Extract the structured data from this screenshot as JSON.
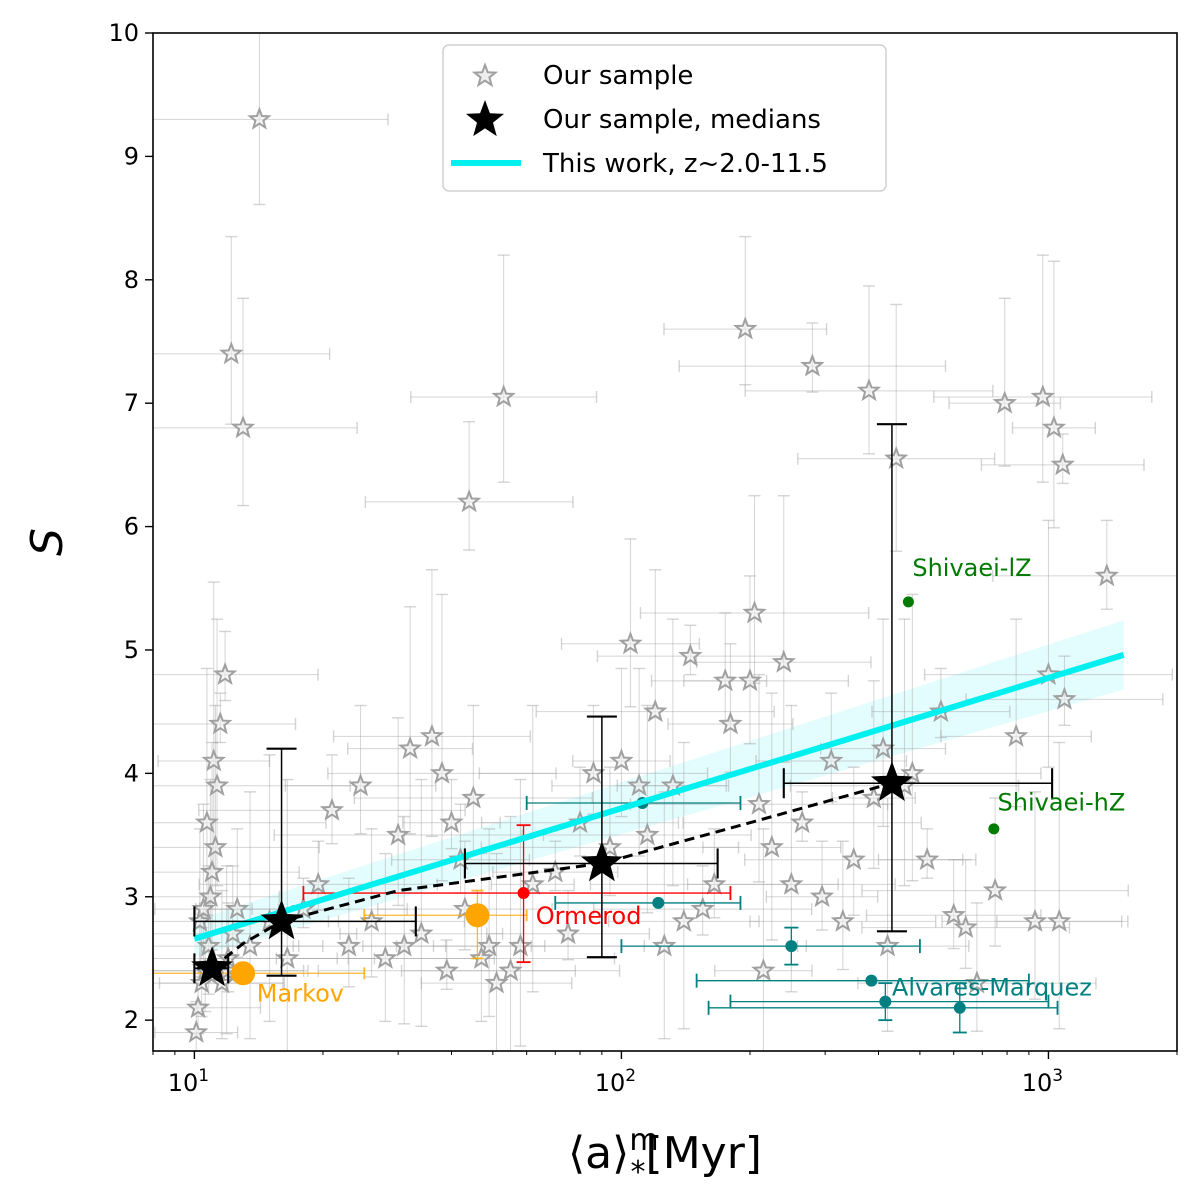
{
  "chart_data": {
    "type": "scatter",
    "xscale": "log",
    "xlim": [
      8,
      2000
    ],
    "ylim": [
      1.75,
      10
    ],
    "xlabel_main": "⟨a⟩",
    "xlabel_sup": "m",
    "xlabel_sub": "*",
    "xlabel_unit": "[Myr]",
    "ylabel": "S",
    "x_tick_labels": [
      "10",
      "10",
      "10"
    ],
    "x_tick_exponents": [
      "1",
      "2",
      "3"
    ],
    "x_tick_values": [
      10,
      100,
      1000
    ],
    "y_ticks": [
      2,
      3,
      4,
      5,
      6,
      7,
      8,
      9,
      10
    ],
    "y_tick_labels": [
      "2",
      "3",
      "4",
      "5",
      "6",
      "7",
      "8",
      "9",
      "10"
    ],
    "legend": [
      {
        "label": "Our sample",
        "marker": "open-star",
        "color": "#a0a0a0"
      },
      {
        "label": "Our sample, medians",
        "marker": "filled-star",
        "color": "#000000"
      },
      {
        "label": "This work, z~2.0-11.5",
        "marker": "line",
        "color": "#00f0f0"
      }
    ],
    "colors": {
      "sample": "#a0a0a0",
      "median": "#000000",
      "fit": "#00f0f0",
      "band": "#d9fbfc",
      "markov": "#ffa500",
      "ormerod": "#ff0000",
      "alvares": "#008080",
      "shivaei": "#007a00"
    },
    "sample_points": [
      [
        10.1,
        1.9
      ],
      [
        10.2,
        2.1
      ],
      [
        10.4,
        2.3
      ],
      [
        10.6,
        2.4
      ],
      [
        10.8,
        2.6
      ],
      [
        10.3,
        2.8
      ],
      [
        10.5,
        2.9
      ],
      [
        10.9,
        3.0
      ],
      [
        11.0,
        3.2
      ],
      [
        11.2,
        3.4
      ],
      [
        10.7,
        3.6
      ],
      [
        11.3,
        3.9
      ],
      [
        11.1,
        4.1
      ],
      [
        11.5,
        4.4
      ],
      [
        11.8,
        4.8
      ],
      [
        12.0,
        2.5
      ],
      [
        12.3,
        2.7
      ],
      [
        12.6,
        2.9
      ],
      [
        11.6,
        2.3
      ],
      [
        11.9,
        2.4
      ],
      [
        12.2,
        7.4
      ],
      [
        13.0,
        6.8
      ],
      [
        14.2,
        9.3
      ],
      [
        13.5,
        2.6
      ],
      [
        15.0,
        2.8
      ],
      [
        16.5,
        2.5
      ],
      [
        18.0,
        2.9
      ],
      [
        19.5,
        3.1
      ],
      [
        21.0,
        3.7
      ],
      [
        23.0,
        2.6
      ],
      [
        24.5,
        3.9
      ],
      [
        26.0,
        2.8
      ],
      [
        28.0,
        2.5
      ],
      [
        30.0,
        3.5
      ],
      [
        31.0,
        2.6
      ],
      [
        32.0,
        4.2
      ],
      [
        34.0,
        2.7
      ],
      [
        36.0,
        4.3
      ],
      [
        38.0,
        4.0
      ],
      [
        39.0,
        2.4
      ],
      [
        40.0,
        3.6
      ],
      [
        42.0,
        3.3
      ],
      [
        43.0,
        2.9
      ],
      [
        44.0,
        6.2
      ],
      [
        45.0,
        3.8
      ],
      [
        47.0,
        2.5
      ],
      [
        49.0,
        2.6
      ],
      [
        51.0,
        2.3
      ],
      [
        53.0,
        7.05
      ],
      [
        55.0,
        2.4
      ],
      [
        58.0,
        2.6
      ],
      [
        62.0,
        3.1
      ],
      [
        70.0,
        3.2
      ],
      [
        75.0,
        2.7
      ],
      [
        80.0,
        3.6
      ],
      [
        86.0,
        4.0
      ],
      [
        94.0,
        3.4
      ],
      [
        100.0,
        4.1
      ],
      [
        105.0,
        5.05
      ],
      [
        110.0,
        3.9
      ],
      [
        115.0,
        3.5
      ],
      [
        120.0,
        4.5
      ],
      [
        126.0,
        2.6
      ],
      [
        132.0,
        3.9
      ],
      [
        140.0,
        2.8
      ],
      [
        145.0,
        4.95
      ],
      [
        155.0,
        2.9
      ],
      [
        165.0,
        3.1
      ],
      [
        175.0,
        4.75
      ],
      [
        180.0,
        4.4
      ],
      [
        195.0,
        7.6
      ],
      [
        200.0,
        4.75
      ],
      [
        205.0,
        5.3
      ],
      [
        210.0,
        3.75
      ],
      [
        215.0,
        2.4
      ],
      [
        225.0,
        3.4
      ],
      [
        240.0,
        4.9
      ],
      [
        250.0,
        3.1
      ],
      [
        265.0,
        3.6
      ],
      [
        280.0,
        7.3
      ],
      [
        295.0,
        3.0
      ],
      [
        310.0,
        4.1
      ],
      [
        330.0,
        2.8
      ],
      [
        350.0,
        3.3
      ],
      [
        380.0,
        7.1
      ],
      [
        390.0,
        3.8
      ],
      [
        410.0,
        4.2
      ],
      [
        420.0,
        2.6
      ],
      [
        440.0,
        6.55
      ],
      [
        460.0,
        3.9
      ],
      [
        480.0,
        4.0
      ],
      [
        520.0,
        3.3
      ],
      [
        560.0,
        4.5
      ],
      [
        600.0,
        2.85
      ],
      [
        640.0,
        2.75
      ],
      [
        680.0,
        2.3
      ],
      [
        750.0,
        3.05
      ],
      [
        790.0,
        7.0
      ],
      [
        840.0,
        4.3
      ],
      [
        930.0,
        2.8
      ],
      [
        970.0,
        7.05
      ],
      [
        1000.0,
        4.8
      ],
      [
        1030.0,
        6.8
      ],
      [
        1060.0,
        2.8
      ],
      [
        1080.0,
        6.5
      ],
      [
        1090.0,
        4.6
      ],
      [
        1370.0,
        5.6
      ]
    ],
    "medians": [
      {
        "x": 11,
        "y": 2.42,
        "xerr_lo": 10,
        "xerr_hi": 12,
        "yerr_lo": 2.42,
        "yerr_hi": 2.42
      },
      {
        "x": 16,
        "y": 2.8,
        "xerr_lo": 10,
        "xerr_hi": 33,
        "yerr_lo": 2.36,
        "yerr_hi": 4.2
      },
      {
        "x": 90,
        "y": 3.27,
        "xerr_lo": 43,
        "xerr_hi": 168,
        "yerr_lo": 2.51,
        "yerr_hi": 4.46
      },
      {
        "x": 430,
        "y": 3.92,
        "xerr_lo": 240,
        "xerr_hi": 1020,
        "yerr_lo": 2.72,
        "yerr_hi": 6.83
      }
    ],
    "median_line": {
      "x": [
        11,
        13,
        16,
        30,
        90,
        200,
        430
      ],
      "y": [
        2.42,
        2.62,
        2.8,
        3.05,
        3.27,
        3.6,
        3.92
      ]
    },
    "fit_line": {
      "x": [
        10,
        1500
      ],
      "y": [
        2.66,
        4.96
      ],
      "band_halfwidth": [
        0.15,
        0.28
      ]
    },
    "markov": [
      {
        "x": 13,
        "y": 2.38,
        "xerr_lo": 8,
        "xerr_hi": 25
      },
      {
        "x": 46,
        "y": 2.85,
        "xerr_lo": 25,
        "xerr_hi": 60,
        "yerr_lo": 2.5,
        "yerr_hi": 3.05
      }
    ],
    "ormerod": [
      {
        "x": 59,
        "y": 3.03,
        "xerr_lo": 18,
        "xerr_hi": 180,
        "yerr_lo": 2.47,
        "yerr_hi": 3.58
      }
    ],
    "alvares": [
      {
        "x": 112,
        "y": 3.76,
        "xerr_lo": 60,
        "xerr_hi": 190
      },
      {
        "x": 122,
        "y": 2.95,
        "xerr_lo": 70,
        "xerr_hi": 190
      },
      {
        "x": 250,
        "y": 2.6,
        "xerr_lo": 100,
        "xerr_hi": 500,
        "yerr_lo": 2.45,
        "yerr_hi": 2.75
      },
      {
        "x": 385,
        "y": 2.32,
        "xerr_lo": 150,
        "xerr_hi": 900
      },
      {
        "x": 415,
        "y": 2.15,
        "xerr_lo": 180,
        "xerr_hi": 1000,
        "yerr_lo": 2.0,
        "yerr_hi": 2.3
      },
      {
        "x": 620,
        "y": 2.1,
        "xerr_lo": 160,
        "xerr_hi": 1050,
        "yerr_lo": 1.9,
        "yerr_hi": 2.3
      }
    ],
    "shivaei": [
      {
        "x": 470,
        "y": 5.39,
        "label": "Shivaei-lZ"
      },
      {
        "x": 745,
        "y": 3.55,
        "label": "Shivaei-hZ"
      }
    ],
    "annotations": [
      {
        "text": "Markov",
        "color": "#ffa500",
        "x": 14,
        "y": 2.15
      },
      {
        "text": "Ormerod",
        "color": "#ff0000",
        "x": 63,
        "y": 2.78
      },
      {
        "text": "Alvares-Marquez",
        "color": "#008080",
        "x": 430,
        "y": 2.2
      },
      {
        "text": "Shivaei-lZ",
        "color": "#007a00",
        "x": 480,
        "y": 5.6
      },
      {
        "text": "Shivaei-hZ",
        "color": "#007a00",
        "x": 760,
        "y": 3.7
      }
    ]
  }
}
